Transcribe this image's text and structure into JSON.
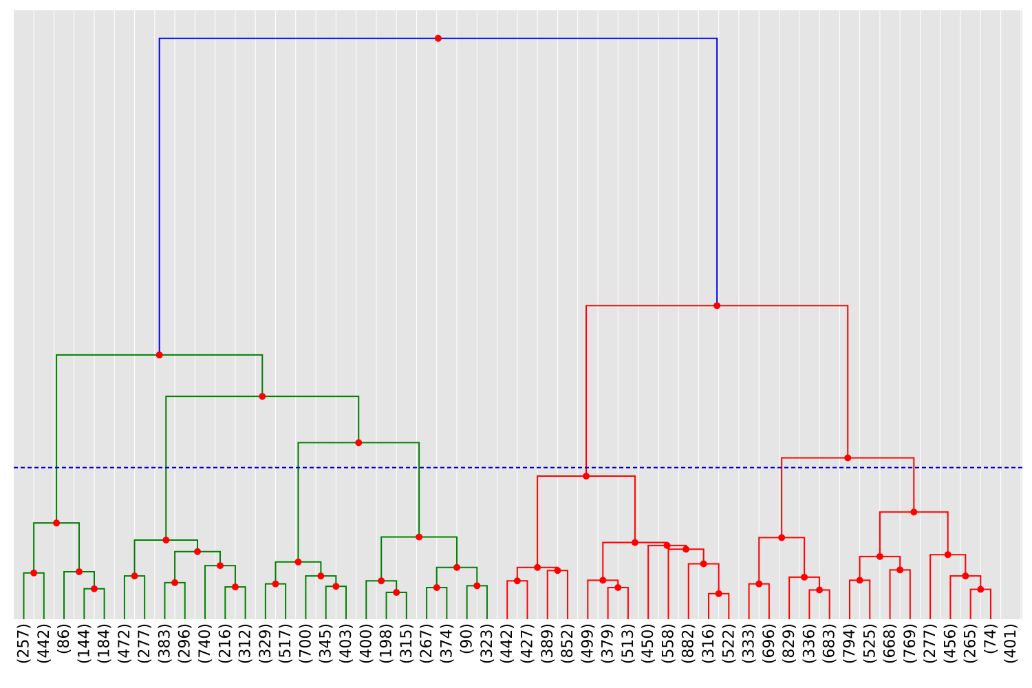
{
  "chart_data": {
    "type": "dendrogram",
    "orientation": "top-down",
    "grid": true,
    "background_color": "#e5e5e5",
    "grid_color": "#ffffff",
    "node_marker_color": "#ff0000",
    "cut_line": {
      "height": 0.249,
      "color": "#0000cc",
      "style": "dashed"
    },
    "y_range": [
      0,
      1.0
    ],
    "leaves": [
      "(257)",
      "(442)",
      "(86)",
      "(144)",
      "(184)",
      "(472)",
      "(277)",
      "(383)",
      "(296)",
      "(740)",
      "(216)",
      "(312)",
      "(329)",
      "(517)",
      "(700)",
      "(345)",
      "(403)",
      "(400)",
      "(198)",
      "(315)",
      "(267)",
      "(374)",
      "(90)",
      "(323)",
      "(442)",
      "(427)",
      "(389)",
      "(852)",
      "(499)",
      "(379)",
      "(513)",
      "(450)",
      "(558)",
      "(882)",
      "(316)",
      "(522)",
      "(333)",
      "(696)",
      "(829)",
      "(336)",
      "(683)",
      "(794)",
      "(525)",
      "(668)",
      "(769)",
      "(277)",
      "(456)",
      "(265)",
      "(74)",
      "(401)"
    ],
    "clusters": [
      {
        "name": "cluster-green",
        "color": "#008000"
      },
      {
        "name": "cluster-red",
        "color": "#ff0000"
      },
      {
        "name": "root-link",
        "color": "#0000ff"
      }
    ],
    "merges": [
      {
        "id": 0,
        "left": {
          "leaf": 0
        },
        "right": {
          "leaf": 1
        },
        "height": 0.076,
        "color": "#008000"
      },
      {
        "id": 1,
        "left": {
          "leaf": 3
        },
        "right": {
          "leaf": 4
        },
        "height": 0.05,
        "color": "#008000"
      },
      {
        "id": 2,
        "left": {
          "leaf": 2
        },
        "right": {
          "node": 1
        },
        "height": 0.078,
        "color": "#008000"
      },
      {
        "id": 3,
        "left": {
          "node": 0
        },
        "right": {
          "node": 2
        },
        "height": 0.158,
        "color": "#008000"
      },
      {
        "id": 4,
        "left": {
          "leaf": 5
        },
        "right": {
          "leaf": 6
        },
        "height": 0.071,
        "color": "#008000"
      },
      {
        "id": 5,
        "left": {
          "leaf": 10
        },
        "right": {
          "leaf": 11
        },
        "height": 0.053,
        "color": "#008000"
      },
      {
        "id": 6,
        "left": {
          "leaf": 9
        },
        "right": {
          "node": 5
        },
        "height": 0.088,
        "color": "#008000"
      },
      {
        "id": 7,
        "left": {
          "leaf": 7
        },
        "right": {
          "leaf": 8
        },
        "height": 0.06,
        "color": "#008000"
      },
      {
        "id": 8,
        "left": {
          "node": 7
        },
        "right": {
          "node": 6
        },
        "height": 0.111,
        "color": "#008000"
      },
      {
        "id": 9,
        "left": {
          "node": 4
        },
        "right": {
          "node": 8
        },
        "height": 0.13,
        "color": "#008000"
      },
      {
        "id": 10,
        "left": {
          "leaf": 12
        },
        "right": {
          "leaf": 13
        },
        "height": 0.058,
        "color": "#008000"
      },
      {
        "id": 11,
        "left": {
          "leaf": 15
        },
        "right": {
          "leaf": 16
        },
        "height": 0.054,
        "color": "#008000"
      },
      {
        "id": 12,
        "left": {
          "leaf": 14
        },
        "right": {
          "node": 11
        },
        "height": 0.071,
        "color": "#008000"
      },
      {
        "id": 13,
        "left": {
          "node": 10
        },
        "right": {
          "node": 12
        },
        "height": 0.094,
        "color": "#008000"
      },
      {
        "id": 14,
        "left": {
          "leaf": 18
        },
        "right": {
          "leaf": 19
        },
        "height": 0.044,
        "color": "#008000"
      },
      {
        "id": 15,
        "left": {
          "leaf": 17
        },
        "right": {
          "node": 14
        },
        "height": 0.063,
        "color": "#008000"
      },
      {
        "id": 16,
        "left": {
          "leaf": 20
        },
        "right": {
          "leaf": 21
        },
        "height": 0.052,
        "color": "#008000"
      },
      {
        "id": 17,
        "left": {
          "leaf": 22
        },
        "right": {
          "leaf": 23
        },
        "height": 0.055,
        "color": "#008000"
      },
      {
        "id": 18,
        "left": {
          "node": 16
        },
        "right": {
          "node": 17
        },
        "height": 0.085,
        "color": "#008000"
      },
      {
        "id": 19,
        "left": {
          "node": 15
        },
        "right": {
          "node": 18
        },
        "height": 0.135,
        "color": "#008000"
      },
      {
        "id": 20,
        "left": {
          "node": 13
        },
        "right": {
          "node": 19
        },
        "height": 0.29,
        "color": "#008000"
      },
      {
        "id": 21,
        "left": {
          "node": 9
        },
        "right": {
          "node": 20
        },
        "height": 0.366,
        "color": "#008000"
      },
      {
        "id": 22,
        "left": {
          "node": 3
        },
        "right": {
          "node": 21
        },
        "height": 0.434,
        "color": "#008000"
      },
      {
        "id": 23,
        "left": {
          "leaf": 24
        },
        "right": {
          "leaf": 25
        },
        "height": 0.063,
        "color": "#ff0000"
      },
      {
        "id": 24,
        "left": {
          "leaf": 26
        },
        "right": {
          "leaf": 27
        },
        "height": 0.08,
        "color": "#ff0000"
      },
      {
        "id": 25,
        "left": {
          "node": 23
        },
        "right": {
          "node": 24
        },
        "height": 0.085,
        "color": "#ff0000"
      },
      {
        "id": 26,
        "left": {
          "leaf": 29
        },
        "right": {
          "leaf": 30
        },
        "height": 0.052,
        "color": "#ff0000"
      },
      {
        "id": 27,
        "left": {
          "leaf": 28
        },
        "right": {
          "node": 26
        },
        "height": 0.064,
        "color": "#ff0000"
      },
      {
        "id": 28,
        "left": {
          "leaf": 34
        },
        "right": {
          "leaf": 35
        },
        "height": 0.042,
        "color": "#ff0000"
      },
      {
        "id": 29,
        "left": {
          "leaf": 33
        },
        "right": {
          "node": 28
        },
        "height": 0.091,
        "color": "#ff0000"
      },
      {
        "id": 30,
        "left": {
          "leaf": 32
        },
        "right": {
          "node": 29
        },
        "height": 0.115,
        "color": "#ff0000"
      },
      {
        "id": 31,
        "left": {
          "leaf": 31
        },
        "right": {
          "node": 30
        },
        "height": 0.121,
        "color": "#ff0000"
      },
      {
        "id": 32,
        "left": {
          "node": 27
        },
        "right": {
          "node": 31
        },
        "height": 0.126,
        "color": "#ff0000"
      },
      {
        "id": 33,
        "left": {
          "node": 25
        },
        "right": {
          "node": 32
        },
        "height": 0.235,
        "color": "#ff0000"
      },
      {
        "id": 34,
        "left": {
          "leaf": 39
        },
        "right": {
          "leaf": 40
        },
        "height": 0.048,
        "color": "#ff0000"
      },
      {
        "id": 35,
        "left": {
          "leaf": 38
        },
        "right": {
          "node": 34
        },
        "height": 0.069,
        "color": "#ff0000"
      },
      {
        "id": 36,
        "left": {
          "leaf": 36
        },
        "right": {
          "leaf": 37
        },
        "height": 0.058,
        "color": "#ff0000"
      },
      {
        "id": 37,
        "left": {
          "node": 36
        },
        "right": {
          "node": 35
        },
        "height": 0.134,
        "color": "#ff0000"
      },
      {
        "id": 38,
        "left": {
          "leaf": 41
        },
        "right": {
          "leaf": 42
        },
        "height": 0.064,
        "color": "#ff0000"
      },
      {
        "id": 39,
        "left": {
          "leaf": 43
        },
        "right": {
          "leaf": 44
        },
        "height": 0.081,
        "color": "#ff0000"
      },
      {
        "id": 40,
        "left": {
          "node": 38
        },
        "right": {
          "node": 39
        },
        "height": 0.103,
        "color": "#ff0000"
      },
      {
        "id": 41,
        "left": {
          "leaf": 47
        },
        "right": {
          "leaf": 48
        },
        "height": 0.049,
        "color": "#ff0000"
      },
      {
        "id": 42,
        "left": {
          "leaf": 46
        },
        "right": {
          "node": 41
        },
        "height": 0.071,
        "color": "#ff0000"
      },
      {
        "id": 43,
        "left": {
          "leaf": 45
        },
        "right": {
          "node": 42
        },
        "height": 0.106,
        "color": "#ff0000"
      },
      {
        "id": 44,
        "left": {
          "node": 40
        },
        "right": {
          "node": 43
        },
        "height": 0.176,
        "color": "#ff0000"
      },
      {
        "id": 45,
        "left": {
          "node": 37
        },
        "right": {
          "node": 44
        },
        "height": 0.265,
        "color": "#ff0000"
      },
      {
        "id": 46,
        "left": {
          "node": 33
        },
        "right": {
          "node": 45
        },
        "height": 0.515,
        "color": "#ff0000"
      },
      {
        "id": 47,
        "left": {
          "node": 22
        },
        "right": {
          "node": 46
        },
        "height": 0.954,
        "color": "#0000ff"
      }
    ]
  }
}
